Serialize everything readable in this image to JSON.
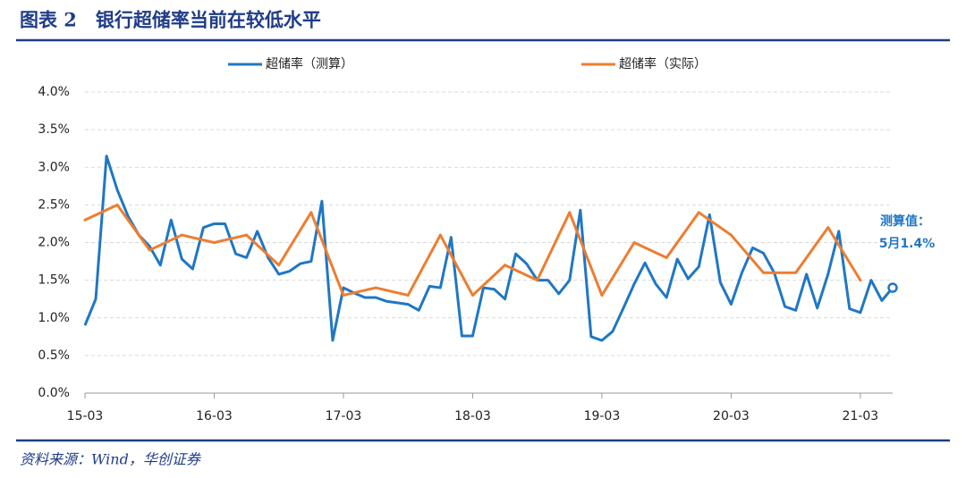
{
  "chart_data": {
    "type": "line",
    "title": "图表 2　银行超储率当前在较低水平",
    "source": "资料来源：Wind，华创证券",
    "categories": [
      "15-03",
      null,
      null,
      null,
      null,
      null,
      null,
      null,
      null,
      null,
      null,
      null,
      "16-03",
      null,
      null,
      null,
      null,
      null,
      null,
      null,
      null,
      null,
      null,
      null,
      "17-03",
      null,
      null,
      null,
      null,
      null,
      null,
      null,
      null,
      null,
      null,
      null,
      "18-03",
      null,
      null,
      null,
      null,
      null,
      null,
      null,
      null,
      null,
      null,
      null,
      "19-03",
      null,
      null,
      null,
      null,
      null,
      null,
      null,
      null,
      null,
      null,
      null,
      "20-03",
      null,
      null,
      null,
      null,
      null,
      null,
      null,
      null,
      null,
      null,
      null,
      "21-03",
      null,
      null,
      null
    ],
    "series": [
      {
        "name": "超储率（测算）",
        "color": "#1f77c4",
        "end_marker": true,
        "values": [
          0.9,
          1.25,
          3.15,
          2.7,
          2.35,
          2.1,
          1.95,
          1.7,
          2.3,
          1.78,
          1.65,
          2.2,
          2.25,
          2.25,
          1.85,
          1.8,
          2.15,
          1.8,
          1.58,
          1.62,
          1.72,
          1.75,
          2.55,
          0.7,
          1.4,
          1.33,
          1.27,
          1.27,
          1.22,
          1.2,
          1.18,
          1.1,
          1.42,
          1.4,
          2.07,
          0.76,
          0.76,
          1.4,
          1.38,
          1.25,
          1.85,
          1.72,
          1.5,
          1.5,
          1.32,
          1.5,
          2.43,
          0.75,
          0.7,
          0.82,
          1.13,
          1.45,
          1.73,
          1.45,
          1.27,
          1.78,
          1.52,
          1.68,
          2.37,
          1.47,
          1.18,
          1.6,
          1.93,
          1.86,
          1.6,
          1.15,
          1.1,
          1.58,
          1.13,
          1.58,
          2.15,
          1.12,
          1.07,
          1.5,
          1.23,
          1.4
        ]
      },
      {
        "name": "超储率（实际）",
        "color": "#ed7d31",
        "connect_nulls": true,
        "values": [
          2.3,
          null,
          null,
          2.5,
          null,
          null,
          1.9,
          null,
          null,
          2.1,
          null,
          null,
          2.0,
          null,
          null,
          2.1,
          null,
          null,
          1.7,
          null,
          null,
          2.4,
          null,
          null,
          1.3,
          null,
          null,
          1.4,
          null,
          null,
          1.3,
          null,
          null,
          2.1,
          null,
          null,
          1.3,
          null,
          null,
          1.7,
          null,
          null,
          1.5,
          null,
          null,
          2.4,
          null,
          null,
          1.3,
          null,
          null,
          2.0,
          null,
          null,
          1.8,
          null,
          null,
          2.4,
          null,
          null,
          2.1,
          null,
          null,
          1.6,
          null,
          null,
          1.6,
          null,
          null,
          2.2,
          null,
          null,
          1.5,
          null,
          null,
          null
        ]
      }
    ],
    "annotations": [
      "测算值：",
      "5月1.4%"
    ],
    "ylim": [
      0,
      4
    ],
    "yticks": [
      {
        "value": 0,
        "label": "0.0%"
      },
      {
        "value": 0.5,
        "label": "0.5%"
      },
      {
        "value": 1,
        "label": "1.0%"
      },
      {
        "value": 1.5,
        "label": "1.5%"
      },
      {
        "value": 2,
        "label": "2.0%"
      },
      {
        "value": 2.5,
        "label": "2.5%"
      },
      {
        "value": 3,
        "label": "3.0%"
      },
      {
        "value": 3.5,
        "label": "3.5%"
      },
      {
        "value": 4,
        "label": "4.0%"
      }
    ],
    "grid": true,
    "legend": "top"
  }
}
